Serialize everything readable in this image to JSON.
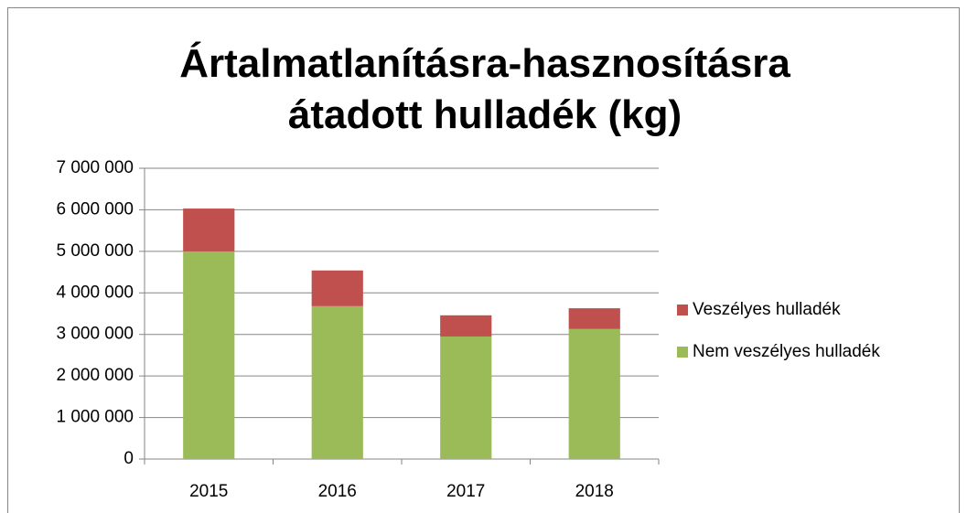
{
  "chart_data": {
    "type": "stacked_bar",
    "title": "Ártalmatlanításra-hasznosításra átadott hulladék (kg)",
    "categories": [
      "2015",
      "2016",
      "2017",
      "2018"
    ],
    "series": [
      {
        "name": "Nem veszélyes hulladék",
        "color": "#9bbb59",
        "values": [
          5000000,
          3680000,
          2950000,
          3130000
        ]
      },
      {
        "name": "Veszélyes hulladék",
        "color": "#c0504d",
        "values": [
          1030000,
          860000,
          510000,
          500000
        ]
      }
    ],
    "ylim": [
      0,
      7000000
    ],
    "yticks": [
      0,
      {
        "value": 1000000,
        "label": "1 000 000"
      },
      {
        "value": 2000000,
        "label": "2 000 000"
      },
      {
        "value": 3000000,
        "label": "3 000 000"
      },
      {
        "value": 4000000,
        "label": "4 000 000"
      },
      {
        "value": 5000000,
        "label": "5 000 000"
      },
      {
        "value": 6000000,
        "label": "6 000 000"
      },
      {
        "value": 7000000,
        "label": "7 000 000"
      }
    ],
    "grid": true,
    "legend": "right"
  }
}
